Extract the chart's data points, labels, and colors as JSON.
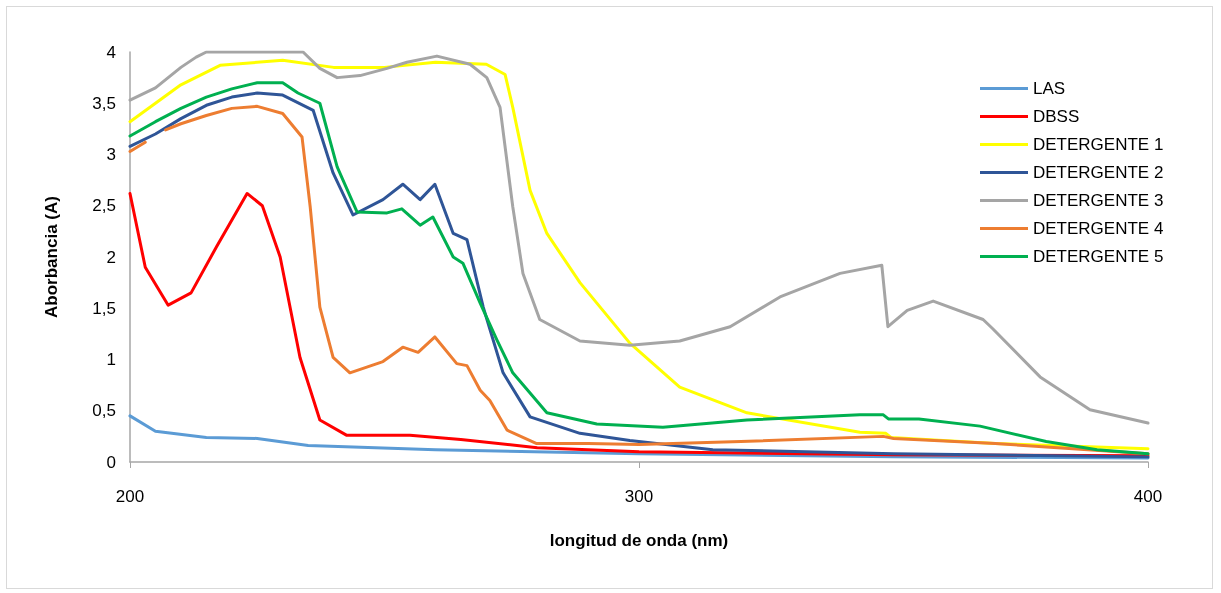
{
  "chart_data": {
    "type": "line",
    "xlabel": "longitud de onda (nm)",
    "ylabel": "Aborbancia (A)",
    "xlim": [
      200,
      400
    ],
    "xticks": [
      200,
      300,
      400
    ],
    "ylim": [
      0,
      4
    ],
    "yticks": [
      0,
      {
        "value": 0.5,
        "label": "0,5"
      },
      1,
      {
        "value": 1.5,
        "label": "1,5"
      },
      2,
      {
        "value": 2.5,
        "label": "2,5"
      },
      3,
      {
        "value": 3.5,
        "label": "3,5"
      },
      4
    ],
    "grid": false,
    "legend": "right",
    "marker": "none",
    "line_style": "solid",
    "series": [
      {
        "name": "LAS",
        "color": "#5b9bd5",
        "x": [
          200,
          205,
          215,
          225,
          235,
          260,
          300,
          350,
          400
        ],
        "values": [
          0.45,
          0.3,
          0.24,
          0.23,
          0.16,
          0.12,
          0.08,
          0.05,
          0.04
        ]
      },
      {
        "name": "DBSS",
        "color": "#ff0000",
        "x": [
          200,
          203,
          207.5,
          212,
          217,
          223,
          226,
          229.5,
          233.4,
          237.3,
          242.6,
          255,
          265,
          280,
          300,
          350,
          400
        ],
        "values": [
          2.62,
          1.9,
          1.53,
          1.65,
          2.1,
          2.62,
          2.5,
          2.0,
          1.02,
          0.41,
          0.26,
          0.26,
          0.22,
          0.14,
          0.1,
          0.07,
          0.06
        ]
      },
      {
        "name": "DETERGENTE 1",
        "color": "#ffff00",
        "x": [
          200,
          205,
          210,
          217.7,
          230,
          240,
          250,
          260,
          270,
          273.7,
          275.2,
          278.6,
          281.9,
          288.4,
          298.2,
          308,
          321.2,
          343.4,
          348.5,
          349.5,
          370,
          400
        ],
        "values": [
          3.32,
          3.5,
          3.68,
          3.87,
          3.92,
          3.85,
          3.85,
          3.9,
          3.88,
          3.78,
          3.46,
          2.65,
          2.23,
          1.75,
          1.16,
          0.73,
          0.48,
          0.29,
          0.28,
          0.24,
          0.18,
          0.13
        ]
      },
      {
        "name": "DETERGENTE 2",
        "color": "#2f5597",
        "x": [
          200,
          205,
          210,
          215,
          220,
          225,
          230,
          236,
          239.9,
          243.8,
          249.7,
          253.6,
          257,
          259.9,
          263.5,
          266.2,
          269.4,
          273.3,
          278.6,
          288.4,
          298.2,
          314.5,
          350,
          400
        ],
        "values": [
          3.08,
          3.2,
          3.35,
          3.48,
          3.56,
          3.6,
          3.58,
          3.43,
          2.82,
          2.41,
          2.56,
          2.71,
          2.56,
          2.71,
          2.23,
          2.17,
          1.51,
          0.87,
          0.44,
          0.28,
          0.21,
          0.12,
          0.08,
          0.05
        ]
      },
      {
        "name": "DETERGENTE 3",
        "color": "#a5a5a5",
        "x": [
          200,
          205,
          210,
          213,
          215,
          234,
          237.3,
          240.7,
          245.2,
          250.5,
          254.4,
          260.3,
          266.8,
          270.1,
          272.7,
          275.2,
          277.2,
          280.5,
          288.4,
          298.2,
          308,
          317.9,
          327.7,
          339.5,
          347.7,
          348.9,
          352.7,
          357.8,
          367.6,
          369.5,
          378.8,
          388.6,
          400
        ],
        "values": [
          3.53,
          3.65,
          3.85,
          3.95,
          4,
          4,
          3.84,
          3.75,
          3.77,
          3.84,
          3.9,
          3.96,
          3.88,
          3.75,
          3.46,
          2.49,
          1.84,
          1.39,
          1.18,
          1.14,
          1.18,
          1.32,
          1.61,
          1.84,
          1.92,
          1.32,
          1.48,
          1.57,
          1.39,
          1.3,
          0.83,
          0.51,
          0.38
        ]
      },
      {
        "name": "DETERGENTE 4",
        "color": "#ed7d31",
        "x": [
          200,
          203,
          205,
          207,
          210,
          215,
          220,
          225,
          230,
          233.8,
          235.4,
          237.3,
          239.9,
          243.2,
          249.7,
          253.6,
          256.6,
          259.9,
          264.2,
          266.2,
          268.8,
          270.7,
          274.1,
          279.9,
          290,
          300,
          320,
          348,
          350,
          370,
          400
        ],
        "values": [
          3.03,
          3.12,
          null,
          3.24,
          3.3,
          3.38,
          3.45,
          3.47,
          3.4,
          3.17,
          2.49,
          1.51,
          1.02,
          0.87,
          0.98,
          1.12,
          1.07,
          1.22,
          0.96,
          0.94,
          0.7,
          0.6,
          0.31,
          0.18,
          0.18,
          0.17,
          0.2,
          0.25,
          0.23,
          0.18,
          0.08
        ]
      },
      {
        "name": "DETERGENTE 5",
        "color": "#00b050",
        "x": [
          200,
          205,
          210,
          215,
          220,
          225,
          230,
          233,
          237.3,
          240.7,
          244.6,
          250.5,
          253.4,
          257,
          259.5,
          263.5,
          265.4,
          268.8,
          272.1,
          275.2,
          281.9,
          291.7,
          304.7,
          321.2,
          343.4,
          348,
          349,
          355,
          367,
          380,
          390,
          400
        ],
        "values": [
          3.18,
          3.32,
          3.45,
          3.56,
          3.64,
          3.7,
          3.7,
          3.6,
          3.5,
          2.88,
          2.44,
          2.43,
          2.47,
          2.31,
          2.39,
          2.0,
          1.94,
          1.55,
          1.19,
          0.87,
          0.48,
          0.37,
          0.34,
          0.41,
          0.46,
          0.46,
          0.42,
          0.42,
          0.35,
          0.2,
          0.12,
          0.08
        ]
      }
    ]
  }
}
